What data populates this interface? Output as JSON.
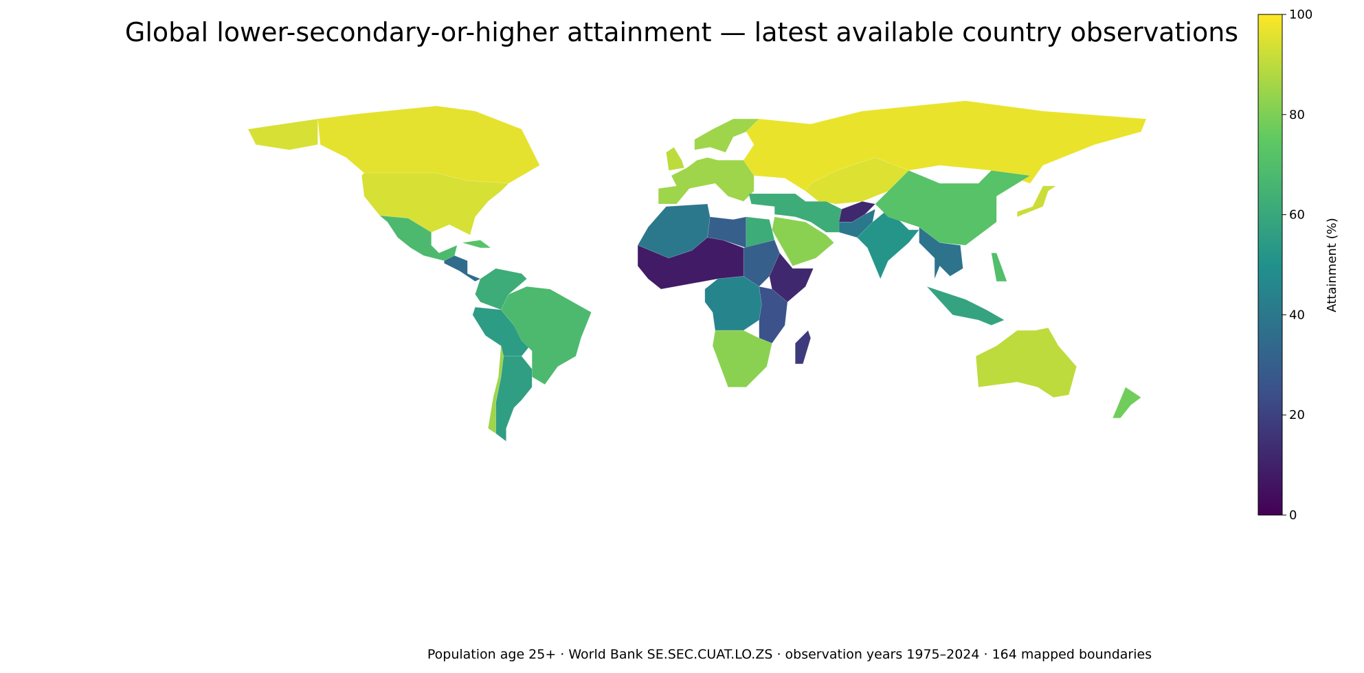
{
  "chart_data": {
    "type": "choropleth",
    "title": "Global lower-secondary-or-higher attainment — latest available country observations",
    "footnote": "Population age 25+ · World Bank SE.SEC.CUAT.LO.ZS · observation years 1975–2024 · 164 mapped boundaries",
    "colorbar_label": "Attainment (%)",
    "colormap": "viridis",
    "ylim": [
      0,
      100
    ],
    "yticks": [
      0,
      20,
      40,
      60,
      80,
      100
    ],
    "values": [
      96,
      94,
      68,
      35,
      72,
      62,
      55,
      68,
      56,
      85,
      85,
      90,
      85,
      97,
      95,
      62,
      82,
      12,
      40,
      52,
      72,
      38,
      58,
      70,
      92,
      90,
      78,
      40,
      30,
      62,
      8,
      45,
      30,
      12,
      25,
      82,
      18
    ]
  }
}
